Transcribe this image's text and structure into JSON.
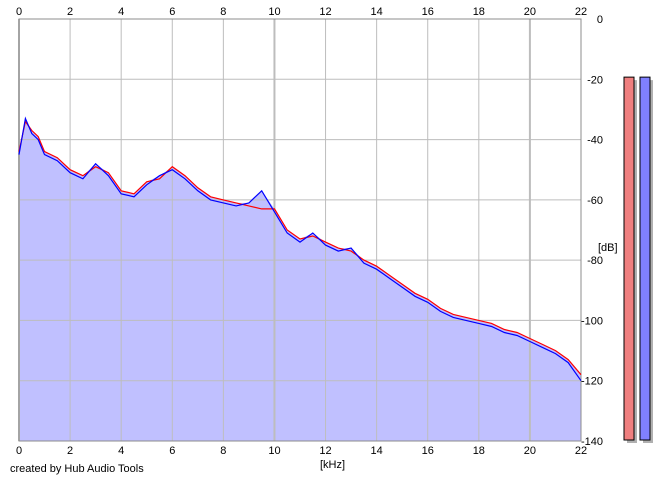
{
  "credit": "created by Hub Audio Tools",
  "chart_data": {
    "type": "line",
    "xlabel": "[kHz]",
    "ylabel": "[dB]",
    "xlim": [
      0,
      22
    ],
    "ylim": [
      -140,
      0
    ],
    "x_ticks": [
      0,
      2,
      4,
      6,
      8,
      10,
      12,
      14,
      16,
      18,
      20,
      22
    ],
    "y_ticks": [
      0,
      -20,
      -40,
      -60,
      -80,
      -100,
      -120,
      -140
    ],
    "grid": true,
    "fill_color": "#c0c0ff",
    "grid_color": "#bdbdbd",
    "series": [
      {
        "color": "#ff0000",
        "x": [
          0,
          0.25,
          0.5,
          0.75,
          1,
          1.5,
          2,
          2.5,
          3,
          3.5,
          4,
          4.5,
          5,
          5.5,
          6,
          6.5,
          7,
          7.5,
          8,
          8.5,
          9,
          9.5,
          10,
          10.5,
          11,
          11.5,
          12,
          12.5,
          13,
          13.5,
          14,
          14.5,
          15,
          15.5,
          16,
          16.5,
          17,
          17.5,
          18,
          18.5,
          19,
          19.5,
          20,
          20.5,
          21,
          21.5,
          22
        ],
        "values": [
          -44,
          -34,
          -37,
          -39,
          -44,
          -46,
          -50,
          -52,
          -49,
          -51,
          -57,
          -58,
          -54,
          -53,
          -49,
          -52,
          -56,
          -59,
          -60,
          -61,
          -62,
          -63,
          -63,
          -70,
          -73,
          -72,
          -74,
          -76,
          -77,
          -80,
          -82,
          -85,
          -88,
          -91,
          -93,
          -96,
          -98,
          -99,
          -100,
          -101,
          -103,
          -104,
          -106,
          -108,
          -110,
          -113,
          -118
        ]
      },
      {
        "color": "#0000ff",
        "x": [
          0,
          0.25,
          0.5,
          0.75,
          1,
          1.5,
          2,
          2.5,
          3,
          3.5,
          4,
          4.5,
          5,
          5.5,
          6,
          6.5,
          7,
          7.5,
          8,
          8.5,
          9,
          9.5,
          10,
          10.5,
          11,
          11.5,
          12,
          12.5,
          13,
          13.5,
          14,
          14.5,
          15,
          15.5,
          16,
          16.5,
          17,
          17.5,
          18,
          18.5,
          19,
          19.5,
          20,
          20.5,
          21,
          21.5,
          22
        ],
        "values": [
          -45,
          -33,
          -38,
          -40,
          -45,
          -47,
          -51,
          -53,
          -48,
          -52,
          -58,
          -59,
          -55,
          -52,
          -50,
          -53,
          -57,
          -60,
          -61,
          -62,
          -61,
          -57,
          -64,
          -71,
          -74,
          -71,
          -75,
          -77,
          -76,
          -81,
          -83,
          -86,
          -89,
          -92,
          -94,
          -97,
          -99,
          -100,
          -101,
          -102,
          -104,
          -105,
          -107,
          -109,
          -111,
          -114,
          -120
        ]
      }
    ],
    "meters": [
      {
        "level": 0.96,
        "color": "#ef7f7f"
      },
      {
        "level": 0.96,
        "color": "#8080ff"
      }
    ]
  }
}
